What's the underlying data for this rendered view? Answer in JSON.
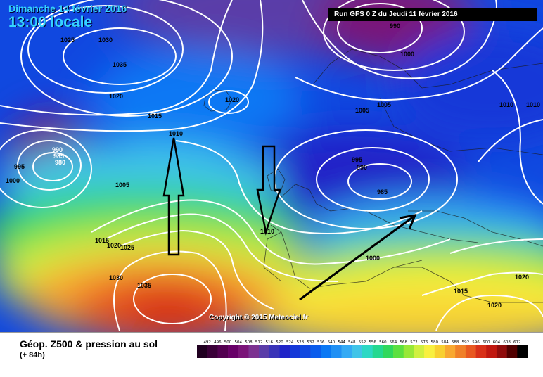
{
  "header": {
    "date_text": "Dimanche 14 février 2016",
    "time_text": "13:00 locale",
    "run_text": "Run GFS 0 Z du Jeudi 11 février 2016"
  },
  "copyright": "Copyright © 2015 Meteociel.fr",
  "legend": {
    "title": "Géop. Z500 & pression au sol",
    "subtitle": "(+ 84h)",
    "levels": [
      492,
      496,
      500,
      504,
      508,
      512,
      516,
      520,
      524,
      528,
      532,
      536,
      540,
      544,
      548,
      552,
      556,
      560,
      564,
      568,
      572,
      576,
      580,
      584,
      588,
      592,
      596,
      600,
      604,
      608,
      612
    ],
    "colors": [
      "#200020",
      "#3a0038",
      "#520050",
      "#680068",
      "#7a1478",
      "#7c3290",
      "#5a3ca8",
      "#3a34b8",
      "#2024c8",
      "#1438d8",
      "#1048e0",
      "#0a5cec",
      "#0a78f4",
      "#2090f4",
      "#34aaf4",
      "#40c4e8",
      "#2cd8c4",
      "#24d890",
      "#30d85c",
      "#5ce040",
      "#98e838",
      "#d0f040",
      "#f8f040",
      "#f8d030",
      "#f8a830",
      "#f08028",
      "#e85820",
      "#d83018",
      "#c01810",
      "#900c0c",
      "#500000",
      "#000000"
    ]
  },
  "isobar_labels": [
    {
      "id": "l1030a",
      "text": "1030"
    },
    {
      "id": "l1035a",
      "text": "1035"
    },
    {
      "id": "l1025a",
      "text": "1025"
    },
    {
      "id": "l1020a",
      "text": "1020"
    },
    {
      "id": "l1015a",
      "text": "1015"
    },
    {
      "id": "l1010a",
      "text": "1010"
    },
    {
      "id": "l1020b",
      "text": "1020"
    },
    {
      "id": "l990a",
      "text": "990"
    },
    {
      "id": "l1000a",
      "text": "1000"
    },
    {
      "id": "l1005a",
      "text": "1005"
    },
    {
      "id": "l1005b",
      "text": "1005"
    },
    {
      "id": "l1010b",
      "text": "1010"
    },
    {
      "id": "l1010c",
      "text": "1010"
    },
    {
      "id": "l990b",
      "text": "990"
    },
    {
      "id": "l985a",
      "text": "985"
    },
    {
      "id": "l980",
      "text": "980"
    },
    {
      "id": "l995a",
      "text": "995"
    },
    {
      "id": "l1000b",
      "text": "1000"
    },
    {
      "id": "l1005c",
      "text": "1005"
    },
    {
      "id": "l995b",
      "text": "995"
    },
    {
      "id": "l990c",
      "text": "990"
    },
    {
      "id": "l985b",
      "text": "985"
    },
    {
      "id": "l1010d",
      "text": "1010"
    },
    {
      "id": "l1000c",
      "text": "1000"
    },
    {
      "id": "l1015b",
      "text": "1015"
    },
    {
      "id": "l1020c",
      "text": "1020"
    },
    {
      "id": "l1025b",
      "text": "1025"
    },
    {
      "id": "l1030b",
      "text": "1030"
    },
    {
      "id": "l1035b",
      "text": "1035"
    },
    {
      "id": "l1015c",
      "text": "1015"
    },
    {
      "id": "l1020d",
      "text": "1020"
    },
    {
      "id": "l1020e",
      "text": "1020"
    }
  ]
}
